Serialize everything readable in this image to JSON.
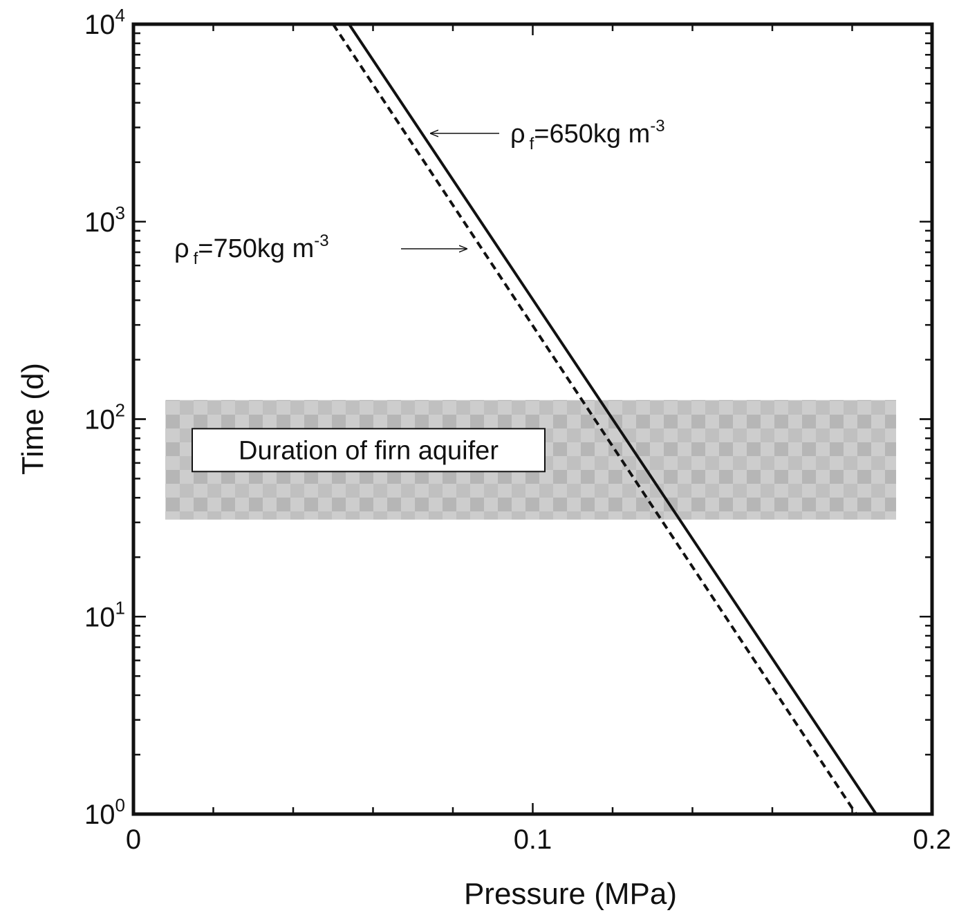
{
  "chart_data": {
    "type": "line",
    "xlabel": "Pressure (MPa)",
    "ylabel": "Time (d)",
    "xlim": [
      0,
      0.2
    ],
    "ylim": [
      1,
      10000
    ],
    "yscale": "log",
    "x_ticks": [
      {
        "value": 0,
        "label": "0"
      },
      {
        "value": 0.1,
        "label": "0.1"
      },
      {
        "value": 0.2,
        "label": "0.2"
      }
    ],
    "y_ticks": [
      {
        "value": 1,
        "base": "10",
        "exp": "0"
      },
      {
        "value": 10,
        "base": "10",
        "exp": "1"
      },
      {
        "value": 100,
        "base": "10",
        "exp": "2"
      },
      {
        "value": 1000,
        "base": "10",
        "exp": "3"
      },
      {
        "value": 10000,
        "base": "10",
        "exp": "4"
      }
    ],
    "series": [
      {
        "label_prefix": "ρ",
        "label_sub": "f",
        "label_main": "=650kg m",
        "label_sup": "-3",
        "style": "solid",
        "points": [
          [
            0.054,
            10000
          ],
          [
            0.186,
            1
          ]
        ]
      },
      {
        "label_prefix": "ρ",
        "label_sub": "f",
        "label_main": "=750kg m",
        "label_sup": "-3",
        "style": "dashed",
        "points": [
          [
            0.05,
            10000
          ],
          [
            0.181,
            1
          ]
        ]
      }
    ],
    "shaded_band": {
      "label": "Duration of firn aquifer",
      "x": [
        0.008,
        0.191
      ],
      "y": [
        31,
        125
      ]
    },
    "grid": false
  }
}
